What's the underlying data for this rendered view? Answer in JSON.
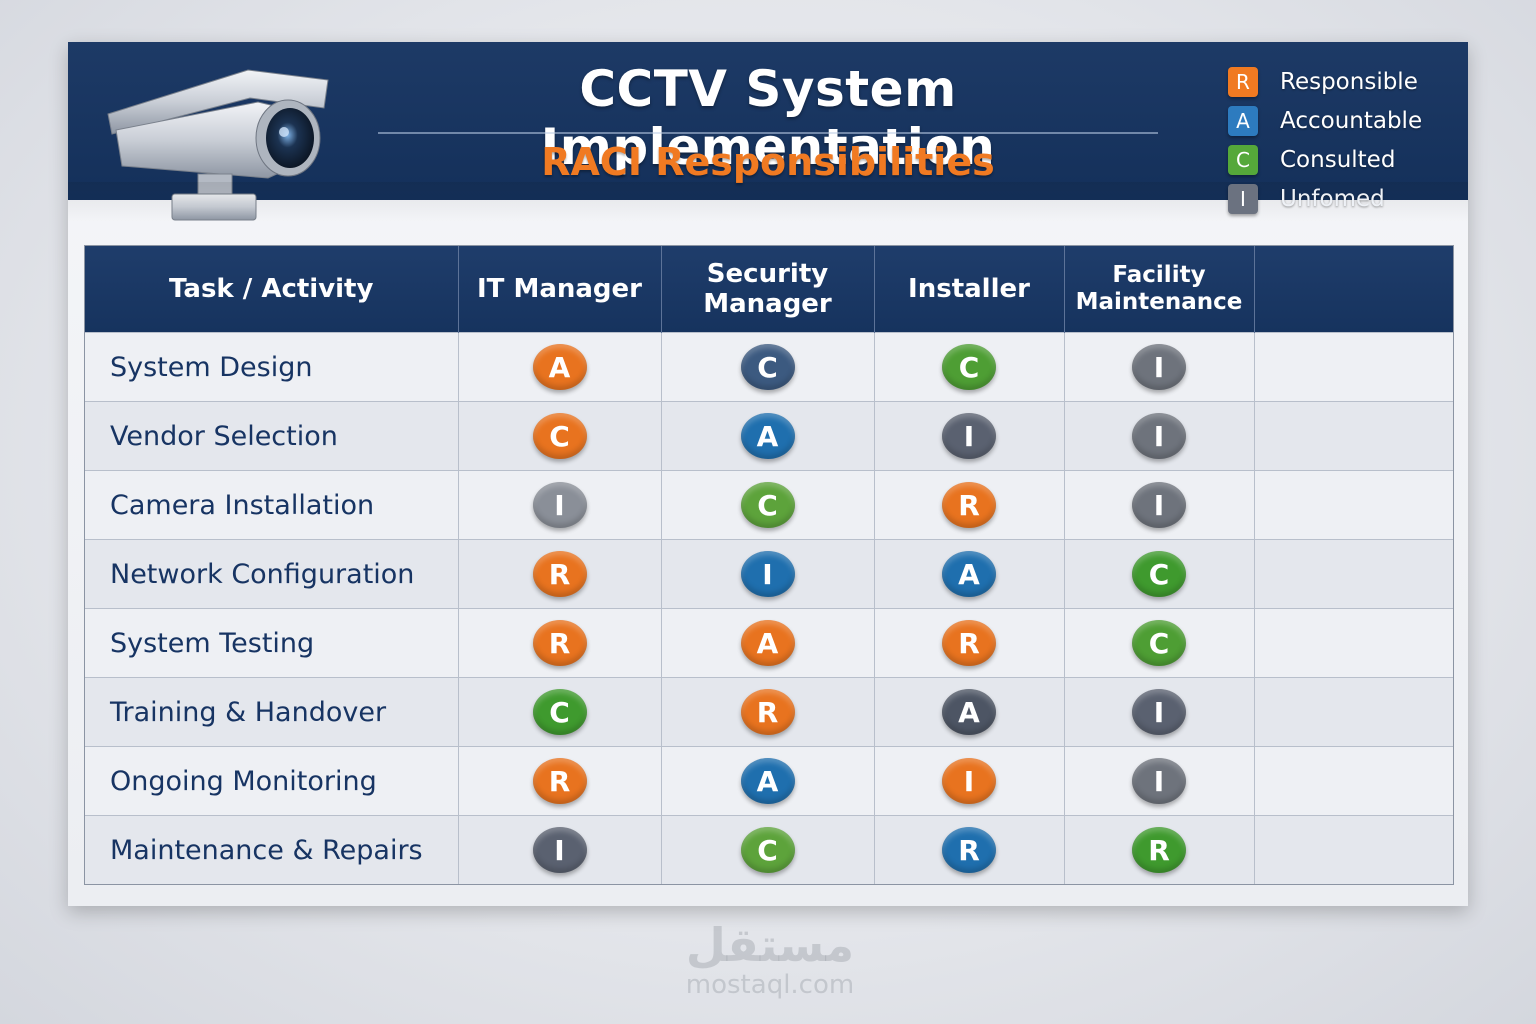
{
  "header": {
    "title": "CCTV System Implementation",
    "subtitle": "RACI Responsibilities"
  },
  "legend": [
    {
      "code": "R",
      "label": "Responsible",
      "color": "#f07a22"
    },
    {
      "code": "A",
      "label": "Accountable",
      "color": "#2d7bbf"
    },
    {
      "code": "C",
      "label": "Consulted",
      "color": "#55a83a"
    },
    {
      "code": "I",
      "label": "Unfomed",
      "color": "#6b7280"
    }
  ],
  "table": {
    "columns": [
      "Task / Activity",
      "IT Manager",
      "Security Manager",
      "Installer",
      "Facility Maintenance",
      ""
    ],
    "rows": [
      {
        "task": "System Design",
        "cells": [
          "A",
          "C",
          "C",
          "I",
          ""
        ]
      },
      {
        "task": "Vendor Selection",
        "cells": [
          "C",
          "A",
          "I",
          "I",
          ""
        ]
      },
      {
        "task": "Camera Installation",
        "cells": [
          "I",
          "C",
          "R",
          "I",
          ""
        ]
      },
      {
        "task": "Network Configuration",
        "cells": [
          "R",
          "I",
          "A",
          "C",
          ""
        ]
      },
      {
        "task": "System Testing",
        "cells": [
          "R",
          "A",
          "R",
          "C",
          ""
        ]
      },
      {
        "task": "Training & Handover",
        "cells": [
          "C",
          "R",
          "A",
          "I",
          ""
        ]
      },
      {
        "task": "Ongoing Monitoring",
        "cells": [
          "R",
          "A",
          "I",
          "I",
          ""
        ]
      },
      {
        "task": "Maintenance & Repairs",
        "cells": [
          "I",
          "C",
          "R",
          "R",
          ""
        ]
      }
    ],
    "badge_colors": [
      [
        "#e8731f",
        "#3c5a80",
        "#4e9e34",
        "#6e737c"
      ],
      [
        "#e8731f",
        "#1f6fae",
        "#5a6170",
        "#6e737c"
      ],
      [
        "#8a8f98",
        "#5da33b",
        "#e8731f",
        "#6e737c"
      ],
      [
        "#e8731f",
        "#1f6fae",
        "#1f6fae",
        "#3f9a2e"
      ],
      [
        "#e8731f",
        "#e8731f",
        "#e8731f",
        "#4e9e34"
      ],
      [
        "#3f9a2e",
        "#e8731f",
        "#4d5564",
        "#5a6170"
      ],
      [
        "#e8731f",
        "#1f6fae",
        "#e8731f",
        "#6e737c"
      ],
      [
        "#5a6170",
        "#5da33b",
        "#1f6fae",
        "#3f9a2e"
      ]
    ]
  },
  "watermark": {
    "arabic": "مستقل",
    "domain": "mostaql.com"
  }
}
